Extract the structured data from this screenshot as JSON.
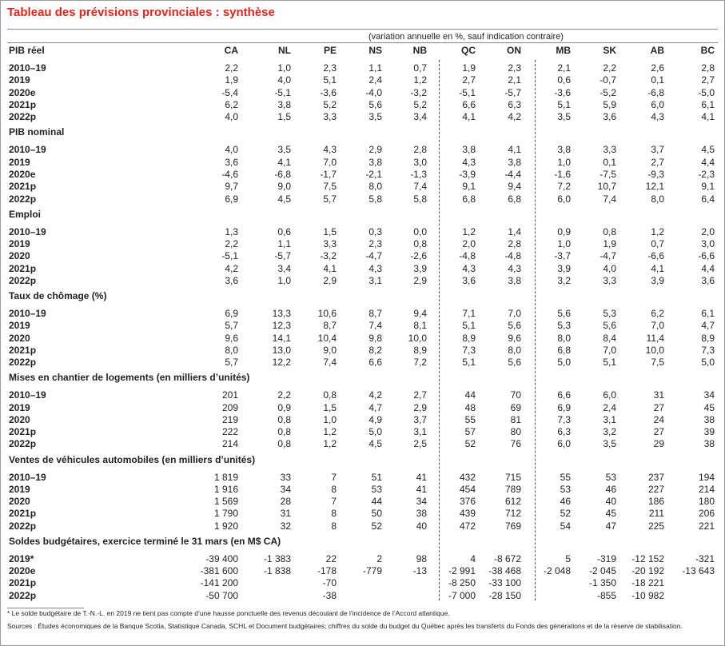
{
  "title": "Tableau des prévisions provinciales : synthèse",
  "subtitle": "(variation annuelle en %, sauf indication contraire)",
  "columns": [
    "CA",
    "NL",
    "PE",
    "NS",
    "NB",
    "QC",
    "ON",
    "MB",
    "SK",
    "AB",
    "BC"
  ],
  "sections": [
    {
      "title": "PIB réel",
      "rows": [
        {
          "label": "2010–19",
          "cells": [
            "2,2",
            "1,0",
            "2,3",
            "1,1",
            "0,7",
            "1,9",
            "2,3",
            "2,1",
            "2,2",
            "2,6",
            "2,8"
          ]
        },
        {
          "label": "2019",
          "cells": [
            "1,9",
            "4,0",
            "5,1",
            "2,4",
            "1,2",
            "2,7",
            "2,1",
            "0,6",
            "-0,7",
            "0,1",
            "2,7"
          ]
        },
        {
          "label": "2020e",
          "cells": [
            "-5,4",
            "-5,1",
            "-3,6",
            "-4,0",
            "-3,2",
            "-5,1",
            "-5,7",
            "-3,6",
            "-5,2",
            "-6,8",
            "-5,0"
          ]
        },
        {
          "label": "2021p",
          "cells": [
            "6,2",
            "3,8",
            "5,2",
            "5,6",
            "5,2",
            "6,6",
            "6,3",
            "5,1",
            "5,9",
            "6,0",
            "6,1"
          ]
        },
        {
          "label": "2022p",
          "cells": [
            "4,0",
            "1,5",
            "3,3",
            "3,5",
            "3,4",
            "4,1",
            "4,2",
            "3,5",
            "3,6",
            "4,3",
            "4,1"
          ]
        }
      ]
    },
    {
      "title": "PIB nominal",
      "rows": [
        {
          "label": "2010–19",
          "cells": [
            "4,0",
            "3,5",
            "4,3",
            "2,9",
            "2,8",
            "3,8",
            "4,1",
            "3,8",
            "3,3",
            "3,7",
            "4,5"
          ]
        },
        {
          "label": "2019",
          "cells": [
            "3,6",
            "4,1",
            "7,0",
            "3,8",
            "3,0",
            "4,3",
            "3,8",
            "1,0",
            "0,1",
            "2,7",
            "4,4"
          ]
        },
        {
          "label": "2020e",
          "cells": [
            "-4,6",
            "-6,8",
            "-1,7",
            "-2,1",
            "-1,3",
            "-3,9",
            "-4,4",
            "-1,6",
            "-7,5",
            "-9,3",
            "-2,3"
          ]
        },
        {
          "label": "2021p",
          "cells": [
            "9,7",
            "9,0",
            "7,5",
            "8,0",
            "7,4",
            "9,1",
            "9,4",
            "7,2",
            "10,7",
            "12,1",
            "9,1"
          ]
        },
        {
          "label": "2022p",
          "cells": [
            "6,9",
            "4,5",
            "5,7",
            "5,8",
            "5,8",
            "6,8",
            "6,8",
            "6,0",
            "7,4",
            "8,0",
            "6,4"
          ]
        }
      ]
    },
    {
      "title": "Emploi",
      "rows": [
        {
          "label": "2010–19",
          "cells": [
            "1,3",
            "0,6",
            "1,5",
            "0,3",
            "0,0",
            "1,2",
            "1,4",
            "0,9",
            "0,8",
            "1,2",
            "2,0"
          ]
        },
        {
          "label": "2019",
          "cells": [
            "2,2",
            "1,1",
            "3,3",
            "2,3",
            "0,8",
            "2,0",
            "2,8",
            "1,0",
            "1,9",
            "0,7",
            "3,0"
          ]
        },
        {
          "label": "2020",
          "cells": [
            "-5,1",
            "-5,7",
            "-3,2",
            "-4,7",
            "-2,6",
            "-4,8",
            "-4,8",
            "-3,7",
            "-4,7",
            "-6,6",
            "-6,6"
          ]
        },
        {
          "label": "2021p",
          "cells": [
            "4,2",
            "3,4",
            "4,1",
            "4,3",
            "3,9",
            "4,3",
            "4,3",
            "3,9",
            "4,0",
            "4,1",
            "4,4"
          ]
        },
        {
          "label": "2022p",
          "cells": [
            "3,6",
            "1,0",
            "2,9",
            "3,1",
            "2,9",
            "3,6",
            "3,8",
            "3,2",
            "3,3",
            "3,9",
            "3,6"
          ]
        }
      ]
    },
    {
      "title": "Taux de chômage (%)",
      "rows": [
        {
          "label": "2010–19",
          "cells": [
            "6,9",
            "13,3",
            "10,6",
            "8,7",
            "9,4",
            "7,1",
            "7,0",
            "5,6",
            "5,3",
            "6,2",
            "6,1"
          ]
        },
        {
          "label": "2019",
          "cells": [
            "5,7",
            "12,3",
            "8,7",
            "7,4",
            "8,1",
            "5,1",
            "5,6",
            "5,3",
            "5,6",
            "7,0",
            "4,7"
          ]
        },
        {
          "label": "2020",
          "cells": [
            "9,6",
            "14,1",
            "10,4",
            "9,8",
            "10,0",
            "8,9",
            "9,6",
            "8,0",
            "8,4",
            "11,4",
            "8,9"
          ]
        },
        {
          "label": "2021p",
          "cells": [
            "8,0",
            "13,0",
            "9,0",
            "8,2",
            "8,9",
            "7,3",
            "8,0",
            "6,8",
            "7,0",
            "10,0",
            "7,3"
          ]
        },
        {
          "label": "2022p",
          "cells": [
            "5,7",
            "12,2",
            "7,4",
            "6,6",
            "7,2",
            "5,1",
            "5,6",
            "5,0",
            "5,1",
            "7,5",
            "5,0"
          ]
        }
      ]
    },
    {
      "title": "Mises en chantier de logements (en milliers d’unités)",
      "rows": [
        {
          "label": "2010–19",
          "cells": [
            "201",
            "2,2",
            "0,8",
            "4,2",
            "2,7",
            "44",
            "70",
            "6,6",
            "6,0",
            "31",
            "34"
          ]
        },
        {
          "label": "2019",
          "cells": [
            "209",
            "0,9",
            "1,5",
            "4,7",
            "2,9",
            "48",
            "69",
            "6,9",
            "2,4",
            "27",
            "45"
          ]
        },
        {
          "label": "2020",
          "cells": [
            "219",
            "0,8",
            "1,0",
            "4,9",
            "3,7",
            "55",
            "81",
            "7,3",
            "3,1",
            "24",
            "38"
          ]
        },
        {
          "label": "2021p",
          "cells": [
            "222",
            "0,8",
            "1,2",
            "5,0",
            "3,1",
            "57",
            "80",
            "6,3",
            "3,2",
            "27",
            "39"
          ]
        },
        {
          "label": "2022p",
          "cells": [
            "214",
            "0,8",
            "1,2",
            "4,5",
            "2,5",
            "52",
            "76",
            "6,0",
            "3,5",
            "29",
            "38"
          ]
        }
      ]
    },
    {
      "title": "Ventes de véhicules automobiles (en milliers d’unités)",
      "rows": [
        {
          "label": "2010–19",
          "cells": [
            "1 819",
            "33",
            "7",
            "51",
            "41",
            "432",
            "715",
            "55",
            "53",
            "237",
            "194"
          ]
        },
        {
          "label": "2019",
          "cells": [
            "1 916",
            "34",
            "8",
            "53",
            "41",
            "454",
            "789",
            "53",
            "46",
            "227",
            "214"
          ]
        },
        {
          "label": "2020",
          "cells": [
            "1 569",
            "28",
            "7",
            "44",
            "34",
            "376",
            "612",
            "46",
            "40",
            "186",
            "180"
          ]
        },
        {
          "label": "2021p",
          "cells": [
            "1 790",
            "31",
            "8",
            "50",
            "38",
            "439",
            "712",
            "52",
            "45",
            "211",
            "206"
          ]
        },
        {
          "label": "2022p",
          "cells": [
            "1 920",
            "32",
            "8",
            "52",
            "40",
            "472",
            "769",
            "54",
            "47",
            "225",
            "221"
          ]
        }
      ]
    },
    {
      "title": "Soldes budgétaires, exercice terminé le 31 mars (en M$ CA)",
      "rows": [
        {
          "label": "2019*",
          "cells": [
            "-39 400",
            "-1 383",
            "22",
            "2",
            "98",
            "4",
            "-8 672",
            "5",
            "-319",
            "-12 152",
            "-321"
          ]
        },
        {
          "label": "2020e",
          "cells": [
            "-381 600",
            "-1 838",
            "-178",
            "-779",
            "-13",
            "-2 991",
            "-38 468",
            "-2 048",
            "-2 045",
            "-20 192",
            "-13 643"
          ]
        },
        {
          "label": "2021p",
          "cells": [
            "-141 200",
            null,
            "-70",
            null,
            null,
            "-8 250",
            "-33 100",
            null,
            "-1 350",
            "-18 221",
            null
          ]
        },
        {
          "label": "2022p",
          "cells": [
            "-50 700",
            null,
            "-38",
            null,
            null,
            "-7 000",
            "-28 150",
            null,
            "-855",
            "-10 982",
            null
          ]
        }
      ]
    }
  ],
  "footnote": "* Le solde budgétaire de T.-N.-L. en 2019 ne tient pas compte d’une hausse ponctuelle des revenus découlant de l’incidence de l’Accord atlantique.",
  "sources": "Sources : Études économiques de la Banque Scotia, Statistique Canada, SCHL et Document budgétaires; chiffres du solde du budget du Québec après les transferts du Fonds des générations et de la réserve de stabilisation."
}
